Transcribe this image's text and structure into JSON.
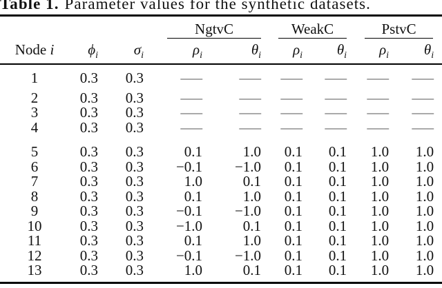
{
  "caption": {
    "label": "Table 1.",
    "text": "Parameter values for the synthetic datasets."
  },
  "table": {
    "col_groups": [
      {
        "name": "NgtvC"
      },
      {
        "name": "WeakC"
      },
      {
        "name": "PstvC"
      }
    ],
    "headers": {
      "node_label": "Node",
      "node_var": "i",
      "phi": "ϕ",
      "sigma": "σ",
      "rho": "ρ",
      "theta": "θ",
      "sub": "i"
    },
    "dash": "—",
    "rows": [
      [
        "1",
        "0.3",
        "0.3",
        "—",
        "—",
        "—",
        "—",
        "—",
        "—"
      ],
      [
        "2",
        "0.3",
        "0.3",
        "—",
        "—",
        "—",
        "—",
        "—",
        "—"
      ],
      [
        "3",
        "0.3",
        "0.3",
        "—",
        "—",
        "—",
        "—",
        "—",
        "—"
      ],
      [
        "4",
        "0.3",
        "0.3",
        "—",
        "—",
        "—",
        "—",
        "—",
        "—"
      ],
      [
        "5",
        "0.3",
        "0.3",
        "0.1",
        "1.0",
        "0.1",
        "0.1",
        "1.0",
        "1.0"
      ],
      [
        "6",
        "0.3",
        "0.3",
        "−0.1",
        "−1.0",
        "0.1",
        "0.1",
        "1.0",
        "1.0"
      ],
      [
        "7",
        "0.3",
        "0.3",
        "1.0",
        "0.1",
        "0.1",
        "0.1",
        "1.0",
        "1.0"
      ],
      [
        "8",
        "0.3",
        "0.3",
        "0.1",
        "1.0",
        "0.1",
        "0.1",
        "1.0",
        "1.0"
      ],
      [
        "9",
        "0.3",
        "0.3",
        "−0.1",
        "−1.0",
        "0.1",
        "0.1",
        "1.0",
        "1.0"
      ],
      [
        "10",
        "0.3",
        "0.3",
        "−1.0",
        "0.1",
        "0.1",
        "0.1",
        "1.0",
        "1.0"
      ],
      [
        "11",
        "0.3",
        "0.3",
        "0.1",
        "1.0",
        "0.1",
        "0.1",
        "1.0",
        "1.0"
      ],
      [
        "12",
        "0.3",
        "0.3",
        "−0.1",
        "−1.0",
        "0.1",
        "0.1",
        "1.0",
        "1.0"
      ],
      [
        "13",
        "0.3",
        "0.3",
        "1.0",
        "0.1",
        "0.1",
        "0.1",
        "1.0",
        "1.0"
      ]
    ],
    "group_breaks_after": [
      0,
      3
    ]
  },
  "colors": {
    "text": "#111111",
    "rule": "#000000",
    "dash": "#555555"
  }
}
